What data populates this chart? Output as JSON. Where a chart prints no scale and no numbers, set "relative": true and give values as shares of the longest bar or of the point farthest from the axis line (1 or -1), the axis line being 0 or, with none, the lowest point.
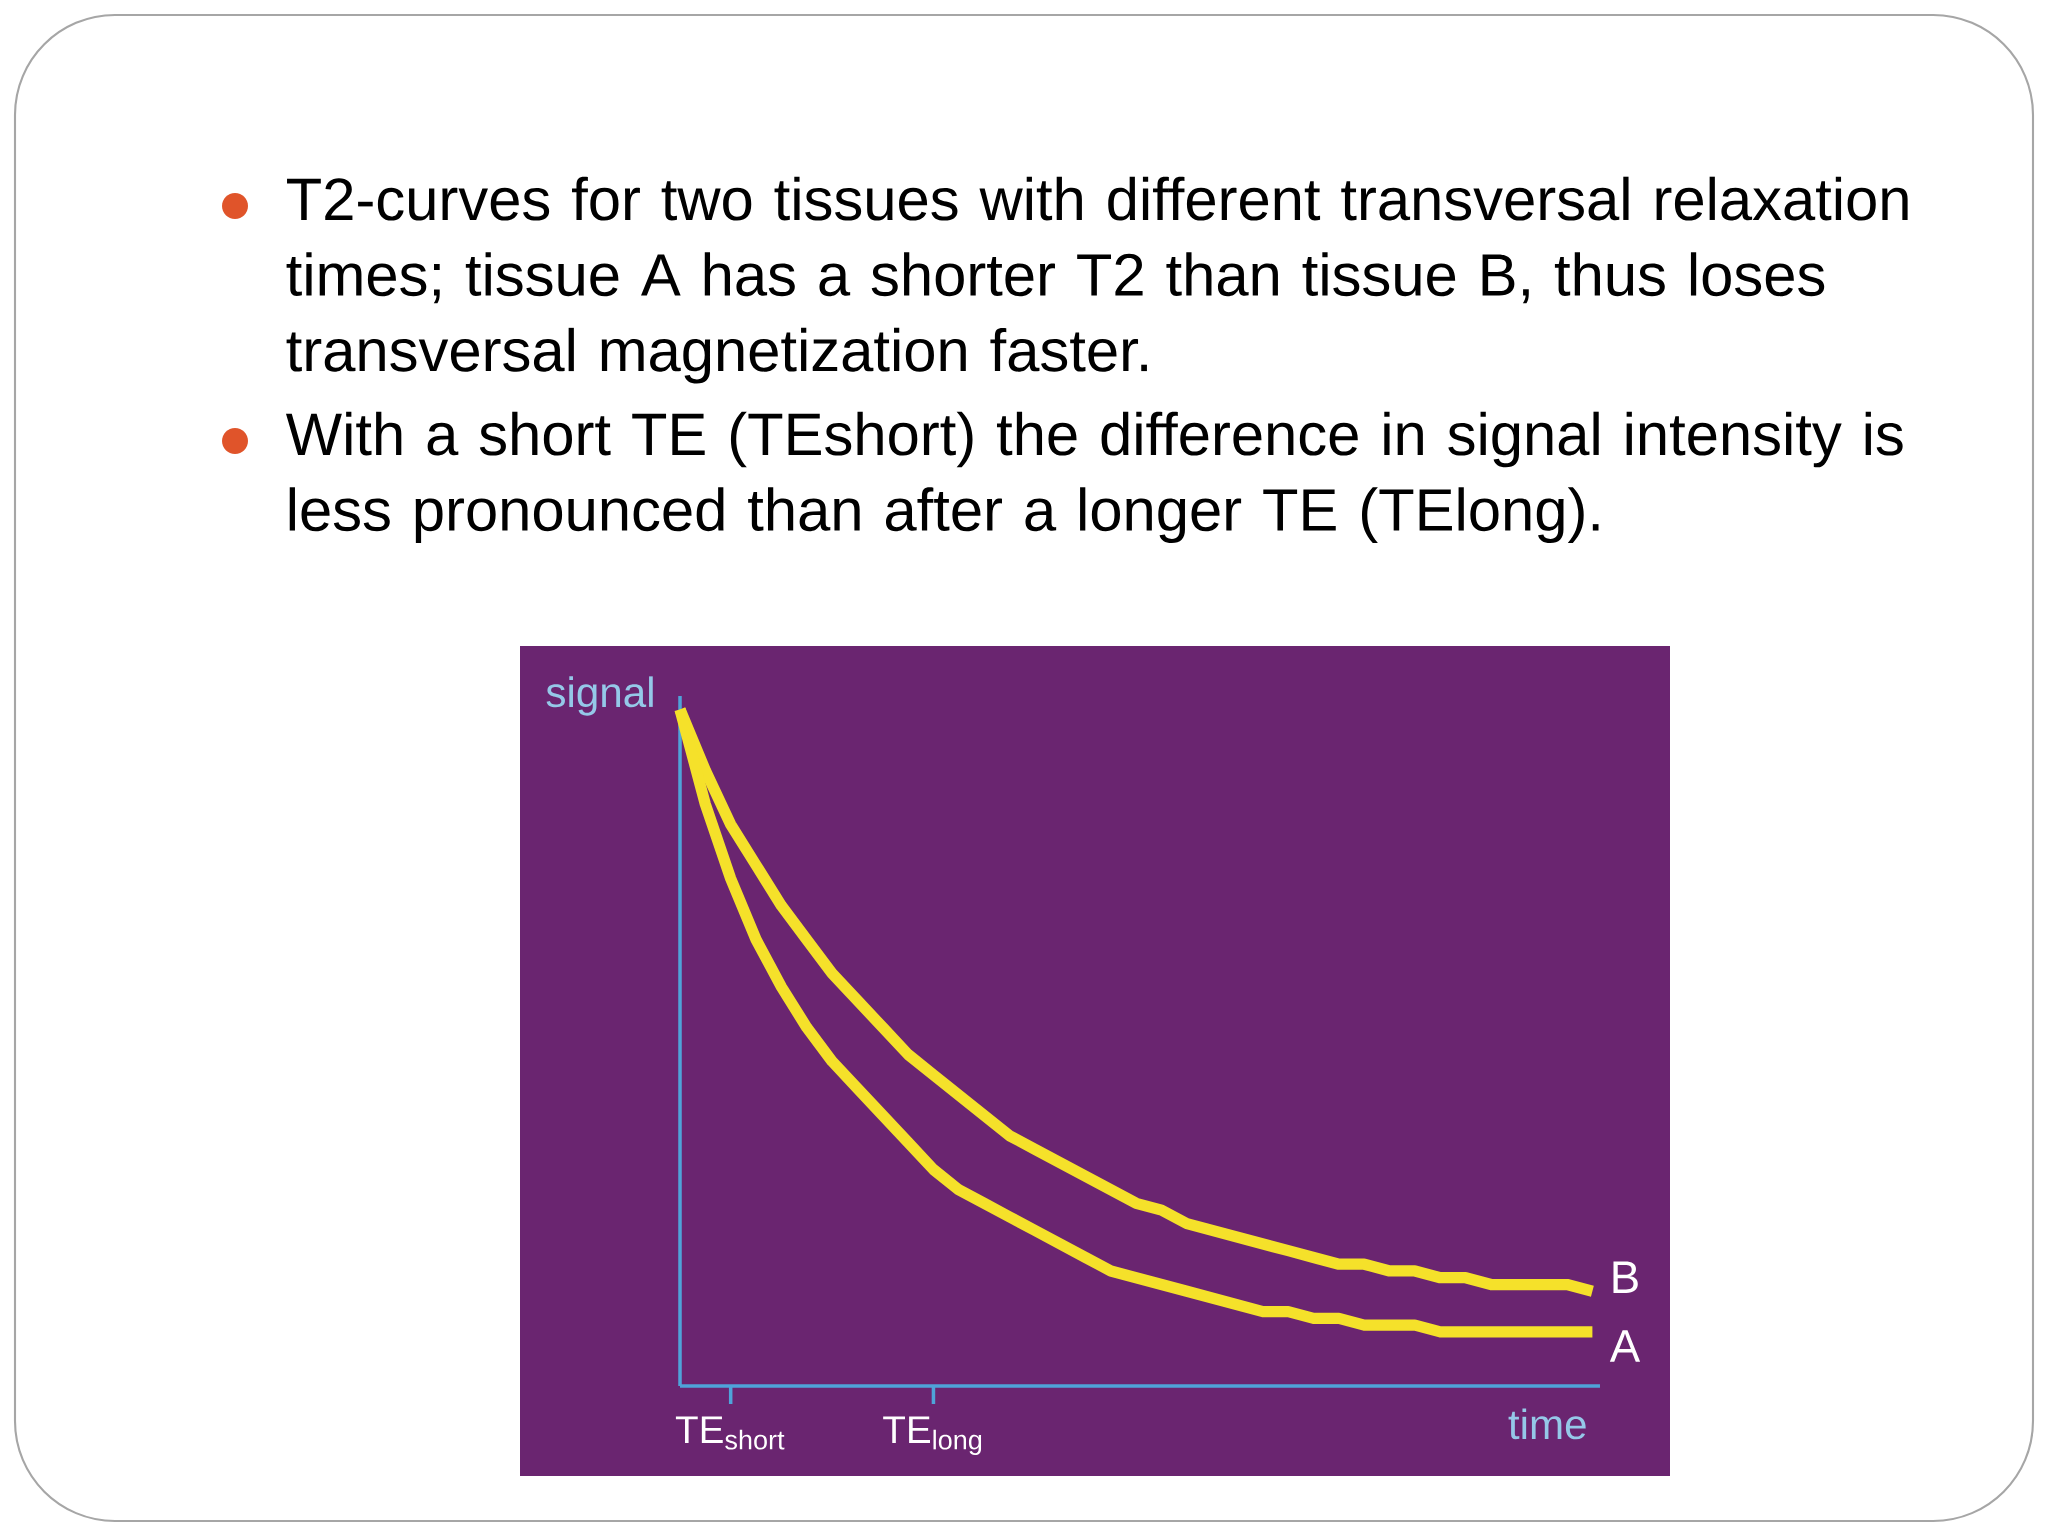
{
  "chart_data": {
    "type": "line",
    "relative": true,
    "xlabel": "time",
    "ylabel": "signal",
    "annotations": [
      "T2-curves for two tissues with different transversal relaxation times; tissue A has a shorter T2 than tissue B, thus loses transversal magnetization faster.",
      "With a short TE (TEshort) the difference in signal intensity is less pronounced than after a longer TE (TElong)."
    ],
    "categories": [
      null,
      null,
      "TE$_{short}$",
      null,
      null,
      null,
      null,
      null,
      null,
      null,
      "TE$_{long}$",
      null,
      null,
      null,
      null,
      null,
      null,
      null,
      null,
      null,
      null,
      null,
      null,
      null,
      null,
      null,
      null,
      null,
      null,
      null,
      null,
      null,
      null,
      null,
      null,
      null,
      null
    ],
    "series": [
      {
        "name": "B",
        "color": "#f5e12a",
        "values": [
          1.0,
          0.91,
          0.83,
          0.77,
          0.71,
          0.66,
          0.61,
          0.57,
          0.53,
          0.49,
          0.46,
          0.43,
          0.4,
          0.37,
          0.35,
          0.33,
          0.31,
          0.29,
          0.27,
          0.26,
          0.24,
          0.23,
          0.22,
          0.21,
          0.2,
          0.19,
          0.18,
          0.18,
          0.17,
          0.17,
          0.16,
          0.16,
          0.15,
          0.15,
          0.15,
          0.15,
          0.14
        ]
      },
      {
        "name": "A",
        "color": "#f5e12a",
        "values": [
          1.0,
          0.86,
          0.75,
          0.66,
          0.59,
          0.53,
          0.48,
          0.44,
          0.4,
          0.36,
          0.32,
          0.29,
          0.27,
          0.25,
          0.23,
          0.21,
          0.19,
          0.17,
          0.16,
          0.15,
          0.14,
          0.13,
          0.12,
          0.11,
          0.11,
          0.1,
          0.1,
          0.09,
          0.09,
          0.09,
          0.08,
          0.08,
          0.08,
          0.08,
          0.08,
          0.08,
          0.08
        ]
      }
    ]
  }
}
